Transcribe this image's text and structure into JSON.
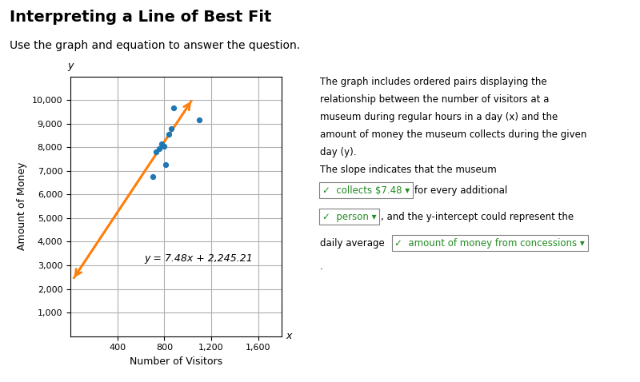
{
  "chart_data": {
    "type": "scatter",
    "title": "Interpreting a Line of Best Fit",
    "subtitle": "Use the graph and equation to answer the question.",
    "xlabel": "Number of Visitors",
    "ylabel": "Amount of Money",
    "series": [
      {
        "type": "scatter",
        "x": [
          700,
          730,
          760,
          775,
          800,
          810,
          840,
          860,
          880,
          1100
        ],
        "values": [
          6750,
          7800,
          7950,
          8150,
          8050,
          7250,
          8550,
          8800,
          9650,
          9150
        ]
      },
      {
        "type": "line",
        "x": [
          30,
          1030
        ],
        "values": [
          2469.61,
          9949.61
        ]
      }
    ],
    "xlim": [
      0,
      1800
    ],
    "ylim": [
      0,
      11000
    ],
    "xticks": [
      400,
      800,
      {
        "value": 1200,
        "label": "1,200"
      },
      {
        "value": 1600,
        "label": "1,600"
      }
    ],
    "yticks": [
      {
        "value": 1000,
        "label": "1,000"
      },
      {
        "value": 2000,
        "label": "2,000"
      },
      {
        "value": 3000,
        "label": "3,000"
      },
      {
        "value": 4000,
        "label": "4,000"
      },
      {
        "value": 5000,
        "label": "5,000"
      },
      {
        "value": 6000,
        "label": "6,000"
      },
      {
        "value": 7000,
        "label": "7,000"
      },
      {
        "value": 8000,
        "label": "8,000"
      },
      {
        "value": 9000,
        "label": "9,000"
      },
      {
        "value": 10000,
        "label": "10,000"
      }
    ],
    "grid": true,
    "annotations": [
      "y = 7.48x + 2,245.21",
      "x",
      "y"
    ],
    "text": [
      [
        {
          "text": "The graph includes ordered pairs displaying the"
        }
      ],
      [
        {
          "text": "relationship between the number of visitors at a"
        }
      ],
      [
        {
          "text": "museum during regular hours in a day (x) and the"
        }
      ],
      [
        {
          "text": "amount of money the museum collects during the given"
        }
      ],
      [
        {
          "text": "day (y)."
        }
      ],
      [
        {
          "text": "The slope indicates that the museum"
        }
      ],
      [
        {
          "text": "✓  collects $7.48 ▾",
          "answer": true,
          "color": "#228b22"
        },
        {
          "text": "for every additional"
        }
      ],
      [
        {
          "text": "✓  person ▾",
          "answer": true,
          "color": "#228b22"
        },
        {
          "text": ", and the y-intercept could represent the"
        }
      ],
      [
        {
          "text": "daily average "
        },
        {
          "text": "✓  amount of money from concessions ▾",
          "answer": true,
          "color": "#228b22"
        }
      ],
      [
        {
          "text": "."
        }
      ]
    ]
  }
}
